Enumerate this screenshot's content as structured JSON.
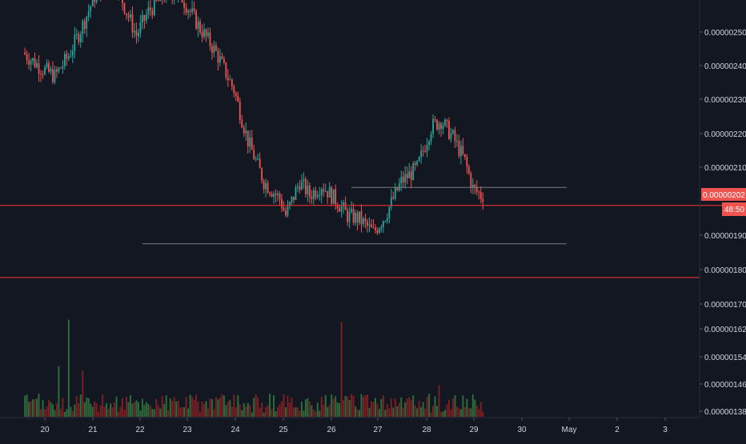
{
  "theme": {
    "background": "#131722",
    "up_color": "#26a69a",
    "down_color": "#ef5350",
    "volume_up": "#2e6b3a",
    "volume_down": "#7a1f22",
    "axis_text": "#d1d4dc",
    "hline_color": "#d32f2f",
    "trendline_color": "#787b86",
    "price_label_bg": "#ef5350"
  },
  "price_axis": {
    "ticks": [
      "0.00000250",
      "0.00000240",
      "0.00000230",
      "0.00000220",
      "0.00000210",
      "0.00000190",
      "0.00000180",
      "0.00000170",
      "0.00000162",
      "0.00000154",
      "0.00000146",
      "0.00000138"
    ]
  },
  "time_axis": {
    "ticks": [
      "20",
      "21",
      "22",
      "23",
      "24",
      "25",
      "26",
      "27",
      "28",
      "29",
      "30",
      "May",
      "2",
      "3"
    ]
  },
  "last_price": {
    "value": "0.00000202",
    "countdown": "48:50"
  },
  "chart_data": {
    "type": "candlestick",
    "title": "",
    "xlabel": "",
    "ylabel": "",
    "x_range": [
      "Apr 19 14:00",
      "May 3 17:00"
    ],
    "y_range": [
      1.8e-06,
      2.6e-06
    ],
    "grid": false,
    "horizontal_lines": [
      {
        "value": 1.99e-06,
        "color": "#d32f2f"
      },
      {
        "value": 1.778e-06,
        "color": "#d32f2f"
      }
    ],
    "trendlines": [
      {
        "from": {
          "x": "Apr 22 01:00",
          "y": 1.877e-06
        },
        "to": {
          "x": "Apr 30 22:00",
          "y": 1.877e-06
        }
      },
      {
        "from": {
          "x": "Apr 26 10:00",
          "y": 2.043e-06
        },
        "to": {
          "x": "Apr 30 22:00",
          "y": 2.043e-06
        }
      }
    ],
    "close_path": [
      [
        "Apr 19 14:00",
        2.44e-06
      ],
      [
        "Apr 19 23:00",
        2.395e-06
      ],
      [
        "Apr 20 06:00",
        2.37e-06
      ],
      [
        "Apr 20 13:00",
        2.43e-06
      ],
      [
        "Apr 20 20:00",
        2.52e-06
      ],
      [
        "Apr 21 03:00",
        2.62e-06
      ],
      [
        "Apr 21 13:00",
        2.64e-06
      ],
      [
        "Apr 21 18:00",
        2.56e-06
      ],
      [
        "Apr 21 23:00",
        2.49e-06
      ],
      [
        "Apr 22 05:00",
        2.56e-06
      ],
      [
        "Apr 22 15:00",
        2.62e-06
      ],
      [
        "Apr 22 22:00",
        2.6e-06
      ],
      [
        "Apr 23 06:00",
        2.52e-06
      ],
      [
        "Apr 23 15:00",
        2.44e-06
      ],
      [
        "Apr 24 00:00",
        2.33e-06
      ],
      [
        "Apr 24 07:00",
        2.18e-06
      ],
      [
        "Apr 24 15:00",
        2.06e-06
      ],
      [
        "Apr 24 23:00",
        2.01e-06
      ],
      [
        "Apr 25 02:00",
        1.96e-06
      ],
      [
        "Apr 25 09:00",
        2.06e-06
      ],
      [
        "Apr 25 14:00",
        2.02e-06
      ],
      [
        "Apr 25 20:00",
        2.05e-06
      ],
      [
        "Apr 26 04:00",
        2e-06
      ],
      [
        "Apr 26 09:00",
        1.96e-06
      ],
      [
        "Apr 26 15:00",
        1.95e-06
      ],
      [
        "Apr 26 22:00",
        1.91e-06
      ],
      [
        "Apr 27 04:00",
        1.96e-06
      ],
      [
        "Apr 27 12:00",
        2.06e-06
      ],
      [
        "Apr 27 20:00",
        2.1e-06
      ],
      [
        "Apr 28 03:00",
        2.22e-06
      ],
      [
        "Apr 28 08:00",
        2.24e-06
      ],
      [
        "Apr 28 14:00",
        2.19e-06
      ],
      [
        "Apr 28 20:00",
        2.12e-06
      ],
      [
        "Apr 29 00:00",
        2.04e-06
      ],
      [
        "Apr 29 04:00",
        2.02e-06
      ]
    ],
    "volume_spikes": [
      {
        "x": "Apr 20 07:00",
        "relative": 0.48
      },
      {
        "x": "Apr 20 12:00",
        "relative": 0.92
      },
      {
        "x": "Apr 20 19:00",
        "relative": 0.44
      },
      {
        "x": "Apr 26 05:00",
        "relative": 0.9
      },
      {
        "x": "Apr 28 06:00",
        "relative": 0.3
      }
    ]
  }
}
